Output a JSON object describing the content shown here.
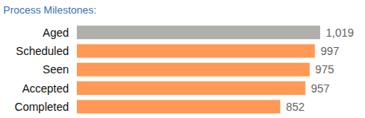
{
  "chart_data": {
    "type": "bar",
    "title": "Process Milestones:",
    "orientation": "horizontal",
    "categories": [
      "Aged",
      "Scheduled",
      "Seen",
      "Accepted",
      "Completed"
    ],
    "values": [
      1019,
      997,
      975,
      957,
      852
    ],
    "value_labels": [
      "1,019",
      "997",
      "975",
      "957",
      "852"
    ],
    "colors": [
      "#b1afab",
      "#ff9955",
      "#ff9955",
      "#ff9955",
      "#ff9955"
    ],
    "xlim": [
      0,
      1019
    ],
    "data_labels": true,
    "tick_labels": false,
    "grid": false
  }
}
